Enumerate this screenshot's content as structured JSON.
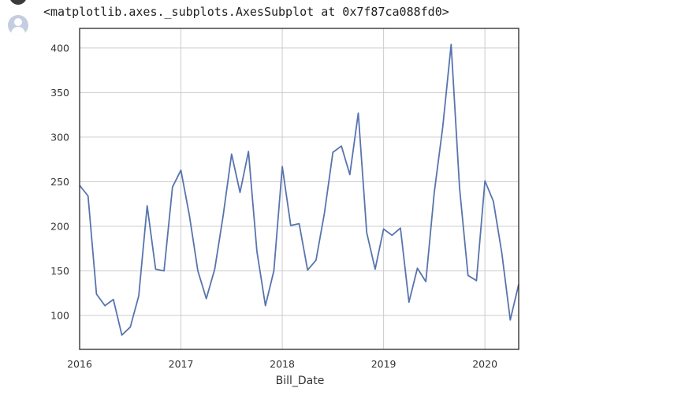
{
  "output": {
    "repr_text": "<matplotlib.axes._subplots.AxesSubplot at 0x7f87ca088fd0>"
  },
  "icons": {
    "run": "run-indicator-icon",
    "avatar": "user-avatar-icon"
  },
  "chart_data": {
    "type": "line",
    "title": "",
    "xlabel": "Bill_Date",
    "ylabel": "",
    "grid": true,
    "x_tick_labels": [
      "2016",
      "2017",
      "2018",
      "2019",
      "2020"
    ],
    "x_tick_values": [
      "2016-01",
      "2017-01",
      "2018-01",
      "2019-01",
      "2020-01"
    ],
    "y_tick_labels": [
      "100",
      "150",
      "200",
      "250",
      "300",
      "350",
      "400"
    ],
    "y_tick_values": [
      100,
      150,
      200,
      250,
      300,
      350,
      400
    ],
    "xlim": [
      "2016-01",
      "2020-05"
    ],
    "ylim": [
      62,
      422
    ],
    "series_color": "#5874ae",
    "series": [
      {
        "x": [
          "2016-01",
          "2016-02",
          "2016-03",
          "2016-04",
          "2016-05",
          "2016-06",
          "2016-07",
          "2016-08",
          "2016-09",
          "2016-10",
          "2016-11",
          "2016-12",
          "2017-01",
          "2017-02",
          "2017-03",
          "2017-04",
          "2017-05",
          "2017-06",
          "2017-07",
          "2017-08",
          "2017-09",
          "2017-10",
          "2017-11",
          "2017-12",
          "2018-01",
          "2018-02",
          "2018-03",
          "2018-04",
          "2018-05",
          "2018-06",
          "2018-07",
          "2018-08",
          "2018-09",
          "2018-10",
          "2018-11",
          "2018-12",
          "2019-01",
          "2019-02",
          "2019-03",
          "2019-04",
          "2019-05",
          "2019-06",
          "2019-07",
          "2019-08",
          "2019-09",
          "2019-10",
          "2019-11",
          "2019-12",
          "2020-01",
          "2020-02",
          "2020-03",
          "2020-04",
          "2020-05"
        ],
        "values": [
          246,
          234,
          124,
          111,
          118,
          78,
          87,
          122,
          223,
          152,
          150,
          244,
          263,
          212,
          150,
          119,
          152,
          212,
          281,
          238,
          284,
          172,
          111,
          150,
          267,
          201,
          203,
          151,
          162,
          215,
          283,
          290,
          258,
          327,
          193,
          152,
          197,
          190,
          198,
          115,
          153,
          138,
          238,
          311,
          404,
          243,
          145,
          139,
          251,
          228,
          170,
          95,
          135
        ]
      }
    ]
  }
}
